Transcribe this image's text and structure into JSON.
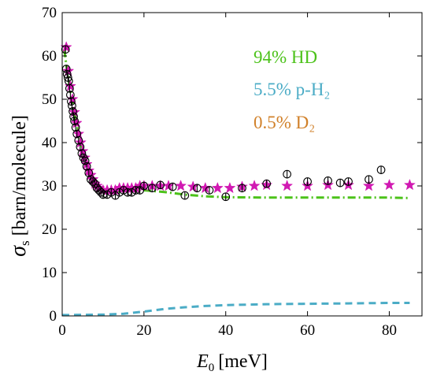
{
  "chart_data": {
    "type": "line",
    "title": "",
    "xlabel_symbol": "E",
    "xlabel_sub": "0",
    "xlabel_unit": "[meV]",
    "ylabel_symbol": "σ",
    "ylabel_sub": "s",
    "ylabel_unit": "[barn/molecule]",
    "xlim": [
      0,
      88
    ],
    "ylim": [
      0,
      70
    ],
    "x_ticks": [
      0,
      20,
      40,
      60,
      80
    ],
    "y_ticks": [
      0,
      10,
      20,
      30,
      40,
      50,
      60,
      70
    ],
    "grid": false,
    "legend_labels": [
      {
        "label": "94% HD",
        "color": "#4CC21A"
      },
      {
        "label": "5.5% p-H₂",
        "color": "#4BACC6"
      },
      {
        "label": "0.5% D₂",
        "color": "#D1812A"
      }
    ],
    "series": [
      {
        "marker": "circle",
        "color": "#000000",
        "points": [
          [
            0.8,
            61.5
          ],
          [
            1.0,
            57.0
          ],
          [
            1.2,
            55.8
          ],
          [
            1.4,
            55.0
          ],
          [
            1.6,
            54.2
          ],
          [
            1.8,
            52.5
          ],
          [
            2.0,
            51.0
          ],
          [
            2.2,
            49.5
          ],
          [
            2.4,
            48.5
          ],
          [
            2.6,
            47.2
          ],
          [
            2.8,
            46.0
          ],
          [
            3.0,
            45.0
          ],
          [
            3.3,
            43.5
          ],
          [
            3.6,
            42.0
          ],
          [
            4.0,
            40.5
          ],
          [
            4.4,
            39.0
          ],
          [
            4.8,
            37.5
          ],
          [
            5.2,
            36.5
          ],
          [
            5.6,
            35.8
          ],
          [
            6.0,
            34.5
          ],
          [
            6.5,
            33.0
          ],
          [
            7.0,
            31.5
          ],
          [
            7.5,
            31.0
          ],
          [
            8.0,
            30.5
          ],
          [
            8.5,
            29.5
          ],
          [
            9.0,
            29.0
          ],
          [
            9.5,
            28.5
          ],
          [
            10.0,
            28.0
          ],
          [
            11.0,
            28.0
          ],
          [
            12.0,
            28.5
          ],
          [
            13.0,
            27.8
          ],
          [
            14.0,
            28.5
          ],
          [
            15.0,
            29.0
          ],
          [
            16.0,
            28.5
          ],
          [
            17.0,
            28.5
          ],
          [
            18.0,
            29.0
          ],
          [
            19.0,
            29.0
          ],
          [
            20.0,
            30.0
          ],
          [
            22.0,
            29.5
          ],
          [
            24.0,
            30.2
          ],
          [
            27.0,
            29.8
          ],
          [
            30.0,
            27.8
          ],
          [
            33.0,
            29.5
          ],
          [
            36.0,
            29.0
          ],
          [
            40.0,
            27.5
          ],
          [
            44.0,
            29.5
          ],
          [
            50.0,
            30.5
          ],
          [
            55.0,
            32.7
          ],
          [
            60.0,
            31.0
          ],
          [
            65.0,
            31.2
          ],
          [
            68.0,
            30.7
          ],
          [
            70.0,
            31.0
          ],
          [
            75.0,
            31.5
          ],
          [
            78.0,
            33.7
          ]
        ]
      },
      {
        "marker": "star",
        "color": "#D119B2",
        "points": [
          [
            1.0,
            62.0
          ],
          [
            1.5,
            56.5
          ],
          [
            2.0,
            53.0
          ],
          [
            2.5,
            50.0
          ],
          [
            3.0,
            47.0
          ],
          [
            3.5,
            44.5
          ],
          [
            4.0,
            42.0
          ],
          [
            4.5,
            40.0
          ],
          [
            5.0,
            38.0
          ],
          [
            5.5,
            36.5
          ],
          [
            6.0,
            35.0
          ],
          [
            6.5,
            33.5
          ],
          [
            7.0,
            32.5
          ],
          [
            7.5,
            31.5
          ],
          [
            8.0,
            30.5
          ],
          [
            8.5,
            30.0
          ],
          [
            9.0,
            29.5
          ],
          [
            10.0,
            29.0
          ],
          [
            11.0,
            29.0
          ],
          [
            12.0,
            29.0
          ],
          [
            13.0,
            29.0
          ],
          [
            14.0,
            29.5
          ],
          [
            15.0,
            29.5
          ],
          [
            16.0,
            29.5
          ],
          [
            17.0,
            29.5
          ],
          [
            18.0,
            29.5
          ],
          [
            19.0,
            30.0
          ],
          [
            20.0,
            30.0
          ],
          [
            22.0,
            30.0
          ],
          [
            24.0,
            30.0
          ],
          [
            26.0,
            30.0
          ],
          [
            29.0,
            30.0
          ],
          [
            32.0,
            29.8
          ],
          [
            35.0,
            29.5
          ],
          [
            38.0,
            29.5
          ],
          [
            41.0,
            29.5
          ],
          [
            44.0,
            29.8
          ],
          [
            47.0,
            30.0
          ],
          [
            50.0,
            30.2
          ],
          [
            55.0,
            30.0
          ],
          [
            60.0,
            30.0
          ],
          [
            65.0,
            30.2
          ],
          [
            70.0,
            30.2
          ],
          [
            75.0,
            30.0
          ],
          [
            80.0,
            30.2
          ],
          [
            85.0,
            30.2
          ]
        ]
      },
      {
        "line_style": "dash-dot",
        "color": "#4CC21A",
        "points": [
          [
            0.5,
            61.5
          ],
          [
            1.0,
            58.0
          ],
          [
            1.5,
            55.0
          ],
          [
            2.0,
            52.0
          ],
          [
            2.5,
            49.5
          ],
          [
            3.0,
            47.0
          ],
          [
            3.5,
            44.5
          ],
          [
            4.0,
            42.5
          ],
          [
            4.5,
            40.5
          ],
          [
            5.0,
            38.5
          ],
          [
            5.5,
            36.8
          ],
          [
            6.0,
            35.2
          ],
          [
            6.5,
            33.8
          ],
          [
            7.0,
            32.5
          ],
          [
            7.5,
            31.5
          ],
          [
            8.0,
            30.6
          ],
          [
            9.0,
            29.6
          ],
          [
            10.0,
            29.0
          ],
          [
            12.0,
            28.7
          ],
          [
            15.0,
            28.8
          ],
          [
            20.0,
            29.0
          ],
          [
            25.0,
            28.6
          ],
          [
            30.0,
            28.0
          ],
          [
            35.0,
            27.6
          ],
          [
            40.0,
            27.4
          ],
          [
            50.0,
            27.3
          ],
          [
            60.0,
            27.3
          ],
          [
            70.0,
            27.3
          ],
          [
            80.0,
            27.3
          ],
          [
            85.0,
            27.2
          ]
        ]
      },
      {
        "line_style": "dashed",
        "color": "#4BACC6",
        "points": [
          [
            0.0,
            0.2
          ],
          [
            10.0,
            0.3
          ],
          [
            15.0,
            0.5
          ],
          [
            20.0,
            1.0
          ],
          [
            25.0,
            1.6
          ],
          [
            30.0,
            2.0
          ],
          [
            35.0,
            2.3
          ],
          [
            40.0,
            2.5
          ],
          [
            50.0,
            2.7
          ],
          [
            60.0,
            2.8
          ],
          [
            70.0,
            2.9
          ],
          [
            80.0,
            3.0
          ],
          [
            85.0,
            3.0
          ]
        ]
      }
    ]
  }
}
